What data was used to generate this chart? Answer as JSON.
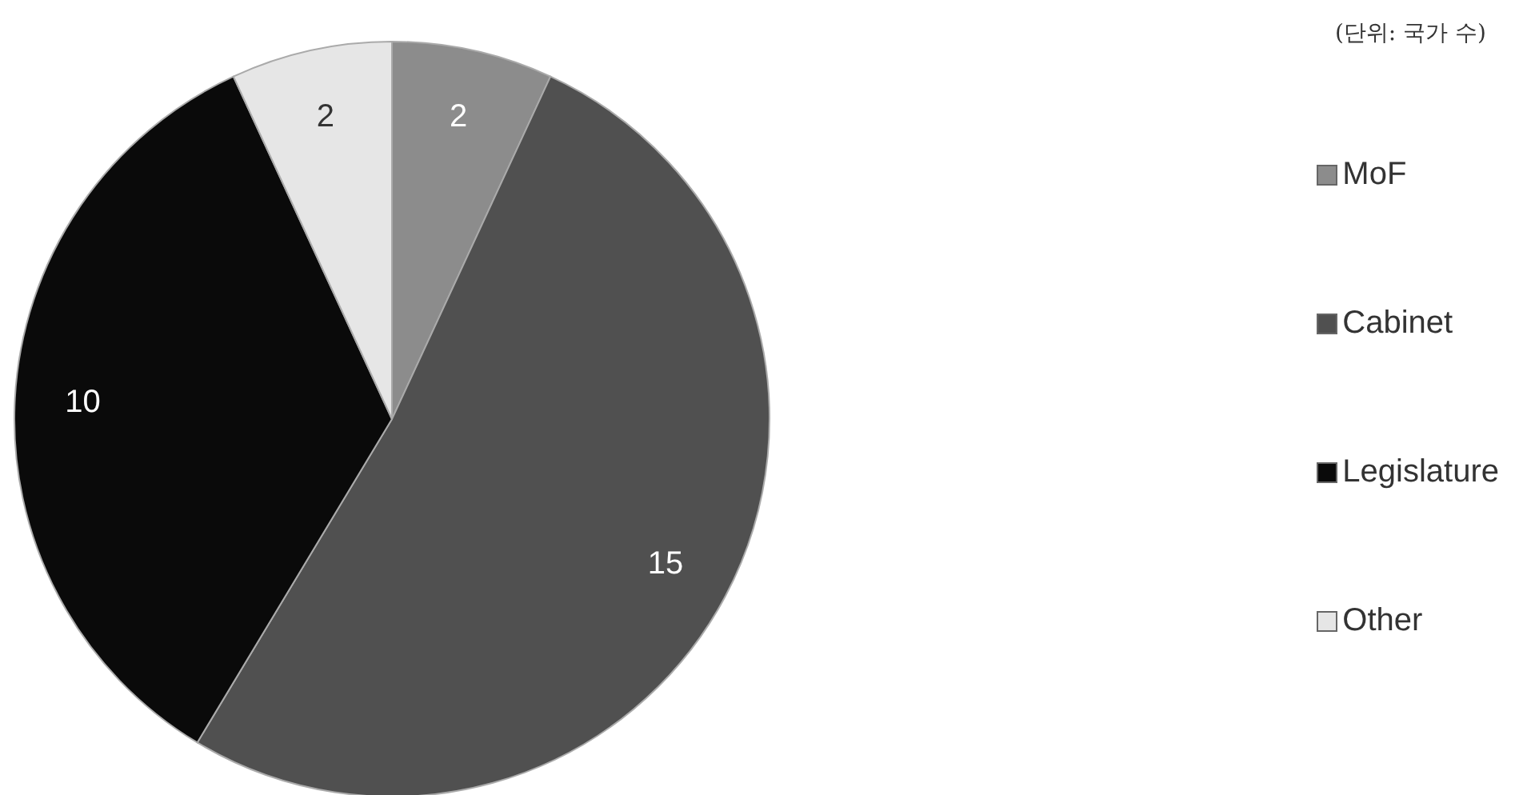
{
  "chart_data": {
    "type": "pie",
    "categories": [
      "MoF",
      "Cabinet",
      "Legislature",
      "Other"
    ],
    "values": [
      2,
      15,
      10,
      2
    ],
    "colors": [
      "#8c8c8c",
      "#505050",
      "#0a0a0a",
      "#e6e6e6"
    ],
    "data_labels": true,
    "legend": "right",
    "annotations": [
      "(단위: 국가 수)"
    ]
  }
}
